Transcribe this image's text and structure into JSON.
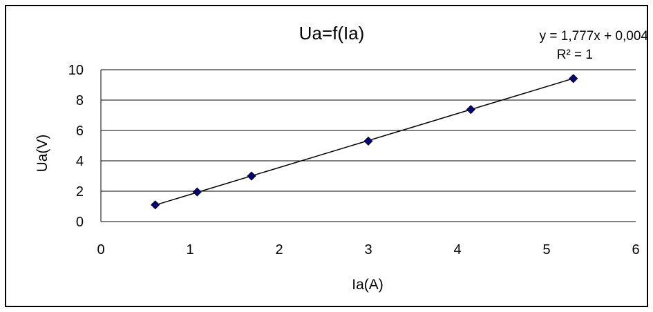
{
  "chart_data": {
    "type": "scatter",
    "title": "Ua=f(Ia)",
    "xlabel": "Ia(A)",
    "ylabel": "Ua(V)",
    "xlim": [
      0,
      6
    ],
    "ylim": [
      0,
      10
    ],
    "x_ticks": [
      "0",
      "1",
      "2",
      "3",
      "4",
      "5",
      "6"
    ],
    "y_ticks": [
      "0",
      "2",
      "4",
      "6",
      "8",
      "10"
    ],
    "grid": "horizontal",
    "legend": "none",
    "series": [
      {
        "x": [
          0.61,
          1.08,
          1.69,
          3.0,
          4.15,
          5.3
        ],
        "y": [
          1.1,
          1.95,
          3.0,
          5.3,
          7.38,
          9.42
        ],
        "marker": "diamond",
        "color": "#000080"
      }
    ],
    "trendline": {
      "type": "linear",
      "slope": 1.777,
      "intercept": 0.004,
      "x_range": [
        0.61,
        5.3
      ],
      "color": "#000000",
      "equation_label": "y = 1,777x + 0,004",
      "r2_label": "R² = 1"
    }
  }
}
